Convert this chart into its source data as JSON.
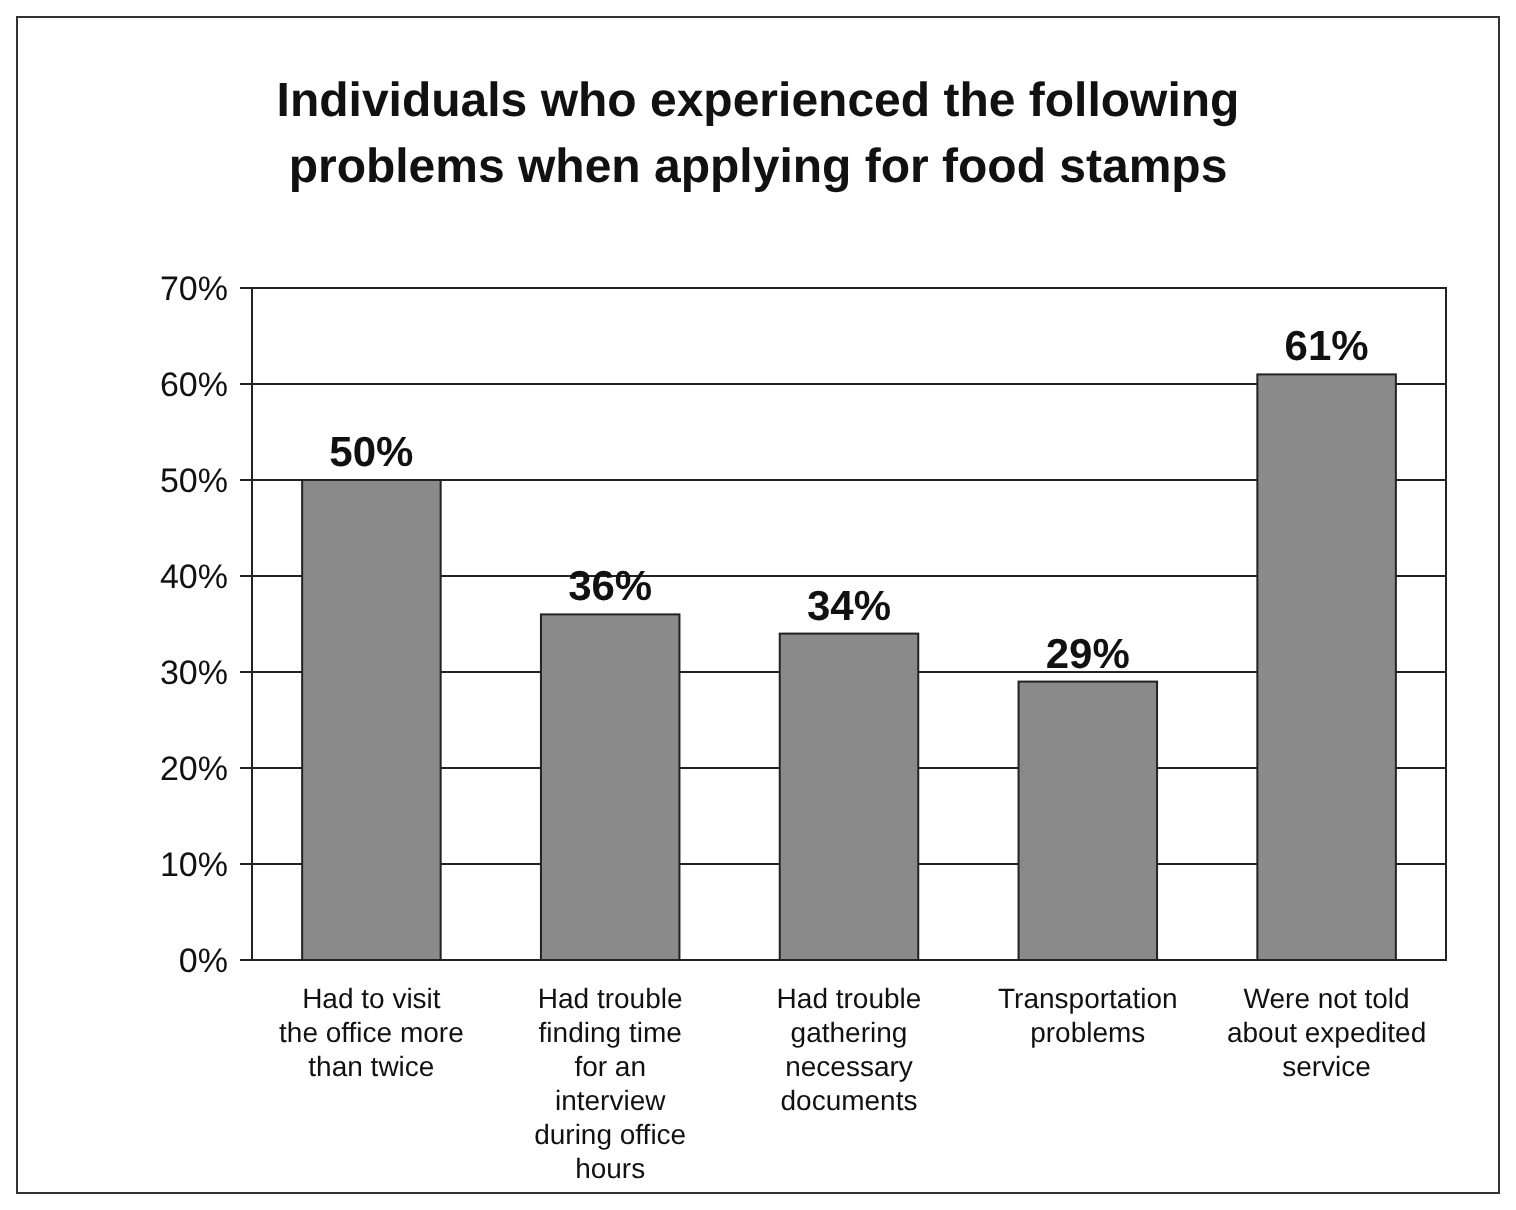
{
  "chart_data": {
    "type": "bar",
    "title": "Individuals who experienced the following problems when applying for food stamps",
    "categories": [
      "Had to visit the office more than twice",
      "Had trouble finding time for an interview during office hours",
      "Had trouble gathering necessary documents",
      "Transportation problems",
      "Were not told about expedited service"
    ],
    "values": [
      50,
      36,
      34,
      29,
      61
    ],
    "value_labels": [
      "50%",
      "36%",
      "34%",
      "29%",
      "61%"
    ],
    "color": "#8a8a8a",
    "ylim": [
      0,
      70
    ],
    "yticks": [
      {
        "value": 0,
        "label": "0%"
      },
      {
        "value": 10,
        "label": "10%"
      },
      {
        "value": 20,
        "label": "20%"
      },
      {
        "value": 30,
        "label": "30%"
      },
      {
        "value": 40,
        "label": "40%"
      },
      {
        "value": 50,
        "label": "50%"
      },
      {
        "value": 60,
        "label": "60%"
      },
      {
        "value": 70,
        "label": "70%"
      }
    ],
    "grid": "y"
  }
}
